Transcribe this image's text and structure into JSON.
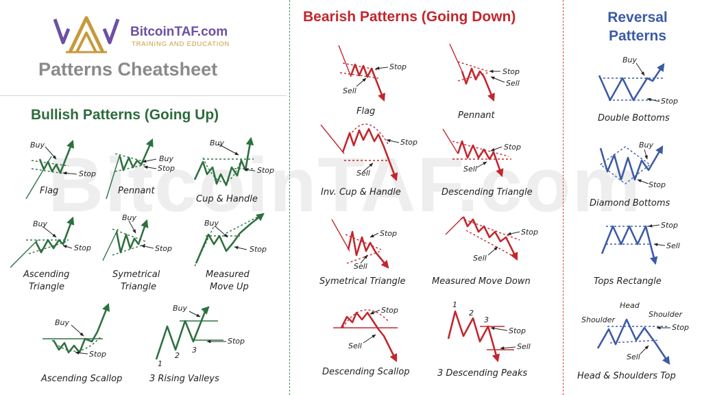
{
  "brand": {
    "name": "BitcoinTAF.com",
    "tagline": "TRAINING AND EDUCATION",
    "watermark": "BitcoinTAF.com"
  },
  "sheet_title": "Patterns Cheatsheet",
  "sections": {
    "bullish": "Bullish Patterns (Going Up)",
    "bearish": "Bearish Patterns (Going Down)",
    "reversal": "Reversal Patterns"
  },
  "labels": {
    "buy": "Buy",
    "stop": "Stop",
    "sell": "Sell",
    "head": "Head",
    "shoulder": "Shoulder",
    "n1": "1",
    "n2": "2",
    "n3": "3"
  },
  "bullish": {
    "flag": "Flag",
    "pennant": "Pennant",
    "cup_handle": "Cup & Handle",
    "ascending_triangle": [
      "Ascending",
      "Triangle"
    ],
    "symmetrical_triangle": [
      "Symetrical",
      "Triangle"
    ],
    "measured_move_up": [
      "Measured",
      "Move Up"
    ],
    "ascending_scallop": "Ascending Scallop",
    "rising_valleys": "3 Rising Valleys"
  },
  "bearish": {
    "flag": "Flag",
    "pennant": "Pennant",
    "inv_cup_handle": "Inv. Cup & Handle",
    "descending_triangle": "Descending Triangle",
    "symmetrical_triangle": "Symetrical Triangle",
    "measured_move_down": "Measured Move Down",
    "descending_scallop": "Descending Scallop",
    "descending_peaks": "3 Descending Peaks"
  },
  "reversal": {
    "double_bottoms": "Double Bottoms",
    "diamond_bottoms": "Diamond Bottoms",
    "tops_rectangle": "Tops Rectangle",
    "head_shoulders_top": "Head & Shoulders Top"
  },
  "colors": {
    "bullish": "#2e7040",
    "bearish": "#c2272d",
    "reversal": "#3d5aa6",
    "brand": "#6d4fa3",
    "tagline": "#c79a3a"
  },
  "icons": {
    "logo": "crown-logo-icon"
  }
}
